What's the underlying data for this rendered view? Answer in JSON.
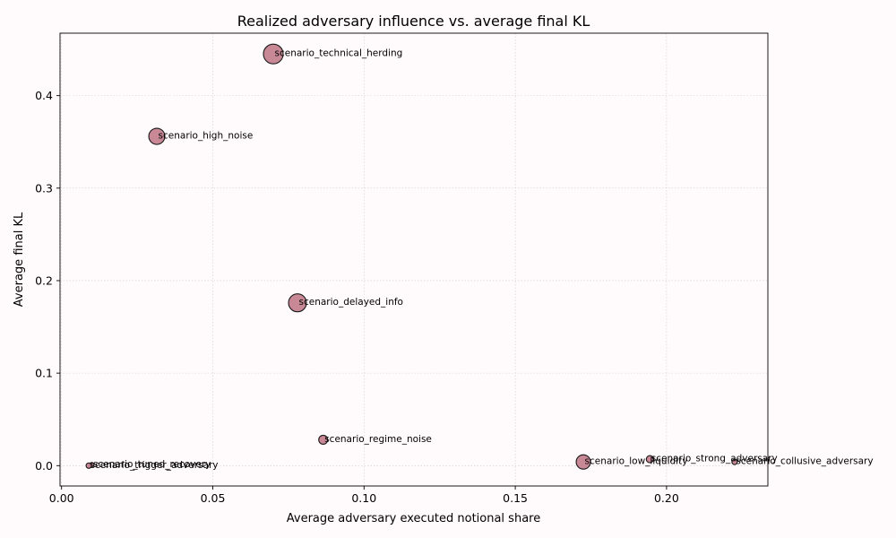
{
  "chart_data": {
    "type": "scatter",
    "title": "Realized adversary influence vs. average final KL",
    "xlabel": "Average adversary executed notional share",
    "ylabel": "Average final KL",
    "xlim": [
      -0.0005,
      0.2335
    ],
    "ylim": [
      -0.022,
      0.4675
    ],
    "xticks": [
      0.0,
      0.05,
      0.1,
      0.15,
      0.2
    ],
    "xtick_labels": [
      "0.00",
      "0.05",
      "0.10",
      "0.15",
      "0.20"
    ],
    "yticks": [
      0.0,
      0.1,
      0.2,
      0.3,
      0.4
    ],
    "ytick_labels": [
      "0.0",
      "0.1",
      "0.2",
      "0.3",
      "0.4"
    ],
    "grid": true,
    "colors": {
      "marker_fill": "#c27b8b",
      "marker_edge": "#1a1a1a"
    },
    "points": [
      {
        "label": "scenario_technical_herding",
        "x": 0.07,
        "y": 0.445,
        "size": 11
      },
      {
        "label": "scenario_high_noise",
        "x": 0.0315,
        "y": 0.356,
        "size": 9
      },
      {
        "label": "scenario_delayed_info",
        "x": 0.078,
        "y": 0.176,
        "size": 10
      },
      {
        "label": "scenario_regime_noise",
        "x": 0.0865,
        "y": 0.028,
        "size": 5
      },
      {
        "label": "scenario_low_liquidity",
        "x": 0.1725,
        "y": 0.004,
        "size": 8
      },
      {
        "label": "scenario_strong_adversary",
        "x": 0.1945,
        "y": 0.007,
        "size": 4
      },
      {
        "label": "scenario_collusive_adversary",
        "x": 0.2225,
        "y": 0.004,
        "size": 3
      },
      {
        "label": "scenario_tuned_recovery",
        "x": 0.01,
        "y": 0.001,
        "size": 2.5
      },
      {
        "label": "scenario_trigger_adversary",
        "x": 0.009,
        "y": 0.0,
        "size": 3
      }
    ]
  }
}
